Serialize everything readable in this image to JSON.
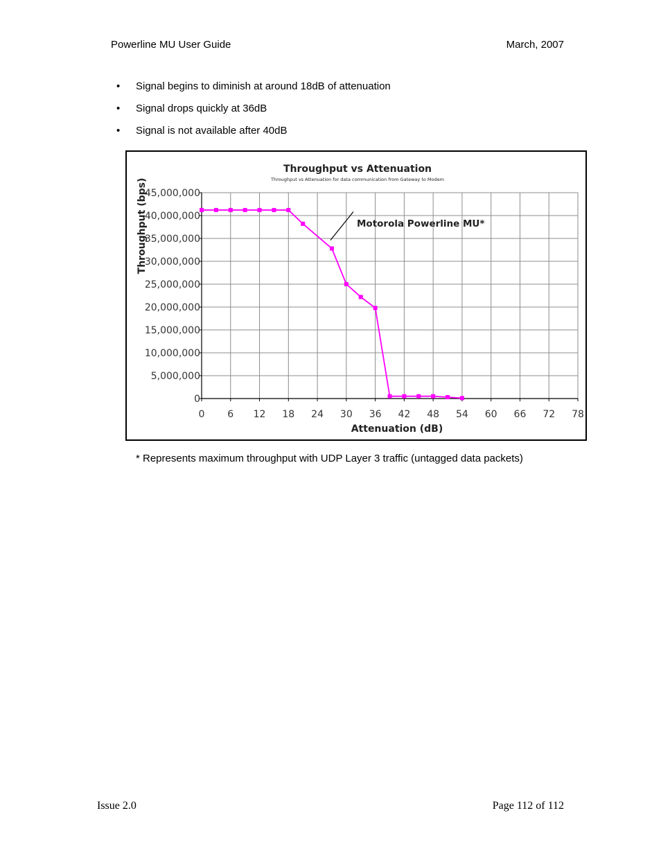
{
  "header": {
    "left": "Powerline MU User Guide",
    "right": "March, 2007"
  },
  "bullets": [
    "Signal begins to diminish at around 18dB of attenuation",
    "Signal drops quickly at 36dB",
    "Signal is not available after 40dB"
  ],
  "bullet_symbol": "•",
  "chart_data": {
    "type": "line",
    "title": "Throughput vs Attenuation",
    "subtitle": "Throughput vs Attenuation for data communication from Gateway to Modem",
    "xlabel": "Attenuation (dB)",
    "ylabel": "Throughput (bps)",
    "xlim": [
      0,
      78
    ],
    "ylim": [
      0,
      45000000
    ],
    "x_ticks": [
      "0",
      "6",
      "12",
      "18",
      "24",
      "30",
      "36",
      "42",
      "48",
      "54",
      "60",
      "66",
      "72",
      "78"
    ],
    "y_ticks": [
      "0",
      "5,000,000",
      "10,000,000",
      "15,000,000",
      "20,000,000",
      "25,000,000",
      "30,000,000",
      "35,000,000",
      "40,000,000",
      "45,000,000"
    ],
    "grid": true,
    "series": [
      {
        "name": "Motorola Powerline MU*",
        "color": "#ff00ff",
        "x": [
          0,
          3,
          6,
          9,
          12,
          15,
          18,
          21,
          27,
          30,
          33,
          36,
          39,
          42,
          45,
          48,
          51,
          54
        ],
        "y": [
          41200000,
          41200000,
          41200000,
          41200000,
          41200000,
          41200000,
          41200000,
          38200000,
          32800000,
          25000000,
          22200000,
          19800000,
          500000,
          500000,
          500000,
          500000,
          300000,
          100000
        ]
      }
    ],
    "annotation": "Motorola Powerline MU*"
  },
  "footnote": "* Represents maximum throughput with UDP Layer 3 traffic (untagged data packets)",
  "footer": {
    "left": "Issue 2.0",
    "right": "Page 112 of 112"
  }
}
